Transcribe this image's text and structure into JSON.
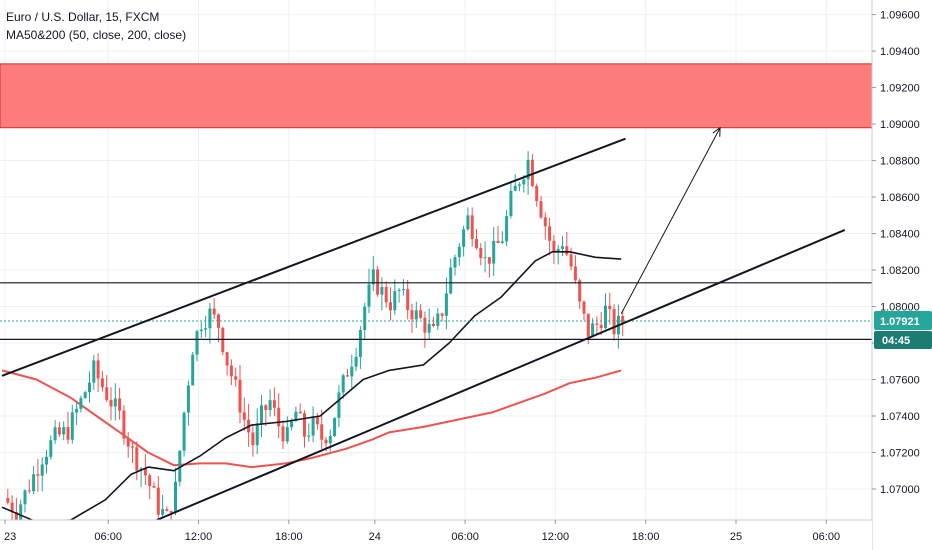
{
  "legend": {
    "symbol": "Euro / U.S. Dollar, 15, FXCM",
    "indicator": "MA50&200 (50, close, 200, close)"
  },
  "colors": {
    "up": "#26a69a",
    "down": "#ef5350",
    "ma50": "#131722",
    "ma200": "#ef5350",
    "zone": "#ff7c7c",
    "price_tag": "#26a69a"
  },
  "price_tag": {
    "price": "1.07921",
    "countdown": "04:45"
  },
  "chart_data": {
    "type": "candlestick",
    "title": "",
    "xlabel": "",
    "ylabel": "",
    "ylim": [
      1.0683,
      1.0968
    ],
    "grid": true,
    "y_ticks": [
      "1.07000",
      "1.07200",
      "1.07400",
      "1.07600",
      "1.07800",
      "1.08000",
      "1.08200",
      "1.08400",
      "1.08600",
      "1.08800",
      "1.09000",
      "1.09200",
      "1.09400",
      "1.09600"
    ],
    "x_ticks": [
      "23",
      "06:00",
      "12:00",
      "18:00",
      "24",
      "06:00",
      "12:00",
      "18:00",
      "25",
      "06:00"
    ],
    "close_path": [
      [
        0,
        1.0695
      ],
      [
        3,
        1.0688
      ],
      [
        6,
        1.0702
      ],
      [
        9,
        1.0718
      ],
      [
        12,
        1.0728
      ],
      [
        15,
        1.0732
      ],
      [
        18,
        1.0748
      ],
      [
        21,
        1.0765
      ],
      [
        24,
        1.0752
      ],
      [
        27,
        1.074
      ],
      [
        30,
        1.072
      ],
      [
        33,
        1.0708
      ],
      [
        36,
        1.069
      ],
      [
        38,
        1.0684
      ],
      [
        40,
        1.07
      ],
      [
        42,
        1.0742
      ],
      [
        44,
        1.0778
      ],
      [
        46,
        1.0792
      ],
      [
        48,
        1.0796
      ],
      [
        50,
        1.079
      ],
      [
        52,
        1.077
      ],
      [
        54,
        1.0755
      ],
      [
        56,
        1.0738
      ],
      [
        58,
        1.0725
      ],
      [
        60,
        1.074
      ],
      [
        62,
        1.0748
      ],
      [
        64,
        1.0735
      ],
      [
        66,
        1.0728
      ],
      [
        68,
        1.0742
      ],
      [
        70,
        1.073
      ],
      [
        72,
        1.0735
      ],
      [
        74,
        1.0728
      ],
      [
        76,
        1.0732
      ],
      [
        78,
        1.075
      ],
      [
        80,
        1.0765
      ],
      [
        82,
        1.0778
      ],
      [
        84,
        1.08
      ],
      [
        86,
        1.0815
      ],
      [
        88,
        1.0808
      ],
      [
        90,
        1.0802
      ],
      [
        92,
        1.0808
      ],
      [
        94,
        1.08
      ],
      [
        96,
        1.0795
      ],
      [
        98,
        1.079
      ],
      [
        100,
        1.0785
      ],
      [
        102,
        1.0798
      ],
      [
        104,
        1.082
      ],
      [
        106,
        1.0835
      ],
      [
        108,
        1.0848
      ],
      [
        110,
        1.0838
      ],
      [
        112,
        1.0825
      ],
      [
        114,
        1.083
      ],
      [
        116,
        1.0838
      ],
      [
        118,
        1.0858
      ],
      [
        120,
        1.087
      ],
      [
        122,
        1.088
      ],
      [
        124,
        1.0862
      ],
      [
        126,
        1.0845
      ],
      [
        128,
        1.0828
      ],
      [
        130,
        1.0836
      ],
      [
        132,
        1.0822
      ],
      [
        134,
        1.08
      ],
      [
        136,
        1.0786
      ],
      [
        138,
        1.079
      ],
      [
        140,
        1.0798
      ],
      [
        142,
        1.0788
      ],
      [
        144,
        1.0792
      ]
    ],
    "ma50": [
      [
        0,
        1.069
      ],
      [
        8,
        1.0682
      ],
      [
        16,
        1.0683
      ],
      [
        24,
        1.0694
      ],
      [
        30,
        1.0708
      ],
      [
        34,
        1.0712
      ],
      [
        40,
        1.071
      ],
      [
        46,
        1.0718
      ],
      [
        52,
        1.0728
      ],
      [
        58,
        1.0735
      ],
      [
        66,
        1.0737
      ],
      [
        74,
        1.074
      ],
      [
        80,
        1.0752
      ],
      [
        84,
        1.076
      ],
      [
        90,
        1.0765
      ],
      [
        98,
        1.0768
      ],
      [
        104,
        1.078
      ],
      [
        110,
        1.0795
      ],
      [
        116,
        1.0805
      ],
      [
        120,
        1.0815
      ],
      [
        124,
        1.0825
      ],
      [
        128,
        1.083
      ],
      [
        132,
        1.083
      ],
      [
        138,
        1.0827
      ],
      [
        144,
        1.0826
      ]
    ],
    "ma200": [
      [
        0,
        1.0765
      ],
      [
        8,
        1.076
      ],
      [
        16,
        1.075
      ],
      [
        22,
        1.074
      ],
      [
        28,
        1.073
      ],
      [
        34,
        1.072
      ],
      [
        40,
        1.0713
      ],
      [
        46,
        1.0714
      ],
      [
        52,
        1.0714
      ],
      [
        58,
        1.0712
      ],
      [
        66,
        1.0714
      ],
      [
        72,
        1.0717
      ],
      [
        80,
        1.0722
      ],
      [
        86,
        1.0727
      ],
      [
        90,
        1.0731
      ],
      [
        98,
        1.0734
      ],
      [
        106,
        1.0738
      ],
      [
        114,
        1.0742
      ],
      [
        120,
        1.0747
      ],
      [
        126,
        1.0752
      ],
      [
        132,
        1.0758
      ],
      [
        138,
        1.0761
      ],
      [
        144,
        1.0765
      ]
    ],
    "zone": {
      "top": 1.0933,
      "bottom": 1.0898
    },
    "horizontal_lines": [
      1.0813,
      1.0782
    ],
    "current_price": 1.07921,
    "channel_upper": {
      "p1": [
        0,
        1.0762
      ],
      "p2": [
        145,
        1.0892
      ]
    },
    "channel_lower": {
      "p1": [
        36,
        1.0683
      ],
      "p2": [
        196,
        1.0842
      ]
    },
    "projection_arrow": [
      [
        144,
        1.0796
      ],
      [
        167,
        1.0898
      ]
    ]
  }
}
